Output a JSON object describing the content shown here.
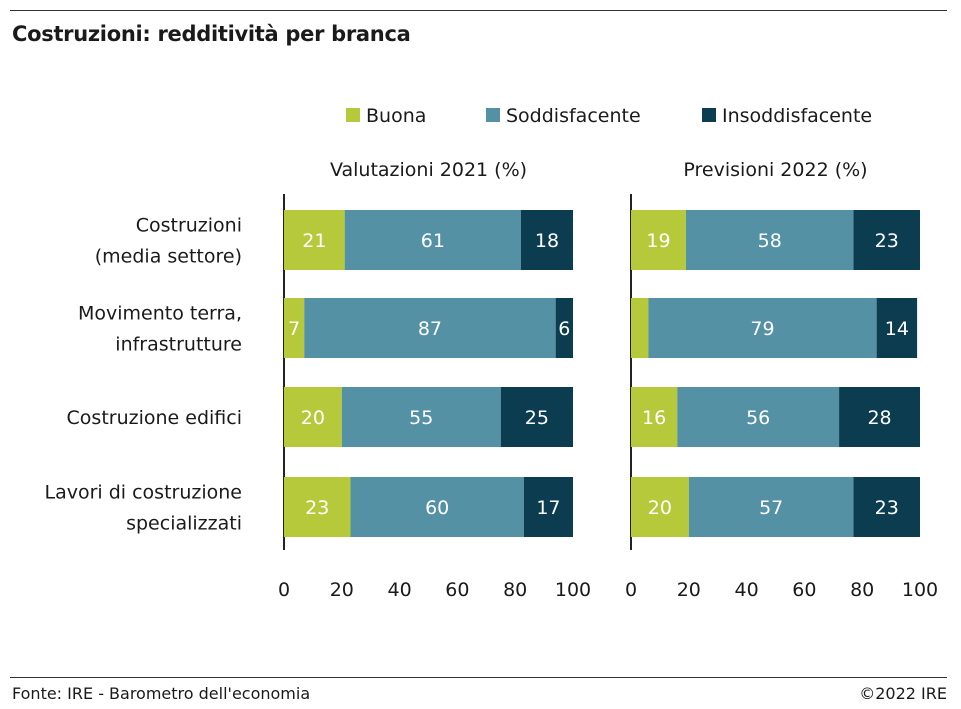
{
  "header": {
    "title": "Costruzioni: redditività per branca"
  },
  "footer": {
    "source": "Fonte: IRE - Barometro dell'economia",
    "copyright": "©2022 IRE"
  },
  "legend": [
    {
      "name": "Buona",
      "color": "#b5c93a"
    },
    {
      "name": "Soddisfacente",
      "color": "#5591a4"
    },
    {
      "name": "Insoddisfacente",
      "color": "#0b3c50"
    }
  ],
  "row_labels": [
    [
      "Costruzioni",
      "(media settore)"
    ],
    [
      "Movimento terra,",
      "infrastrutture"
    ],
    [
      "Costruzione edifici"
    ],
    [
      "Lavori di costruzione",
      "specializzati"
    ]
  ],
  "chart_data": [
    {
      "type": "bar",
      "orientation": "horizontal",
      "stacked": true,
      "title": "Valutazioni 2021 (%)",
      "categories": [
        "Costruzioni (media settore)",
        "Movimento terra, infrastrutture",
        "Costruzione edifici",
        "Lavori di costruzione specializzati"
      ],
      "series": [
        {
          "name": "Buona",
          "values": [
            21,
            7,
            20,
            23
          ]
        },
        {
          "name": "Soddisfacente",
          "values": [
            61,
            87,
            55,
            60
          ]
        },
        {
          "name": "Insoddisfacente",
          "values": [
            18,
            6,
            25,
            17
          ]
        }
      ],
      "xlim": [
        0,
        100
      ],
      "xticks": [
        0,
        20,
        40,
        60,
        80,
        100
      ],
      "show_labels": [
        [
          true,
          true,
          true,
          true
        ],
        [
          true,
          true,
          true,
          true
        ],
        [
          true,
          true,
          true,
          true
        ]
      ]
    },
    {
      "type": "bar",
      "orientation": "horizontal",
      "stacked": true,
      "title": "Previsioni 2022 (%)",
      "categories": [
        "Costruzioni (media settore)",
        "Movimento terra, infrastrutture",
        "Costruzione edifici",
        "Lavori di costruzione specializzati"
      ],
      "series": [
        {
          "name": "Buona",
          "values": [
            19,
            6,
            16,
            20
          ]
        },
        {
          "name": "Soddisfacente",
          "values": [
            58,
            79,
            56,
            57
          ]
        },
        {
          "name": "Insoddisfacente",
          "values": [
            23,
            14,
            28,
            23
          ]
        }
      ],
      "xlim": [
        0,
        100
      ],
      "xticks": [
        0,
        20,
        40,
        60,
        80,
        100
      ],
      "show_labels": [
        [
          true,
          false,
          true,
          true
        ],
        [
          true,
          true,
          true,
          true
        ],
        [
          true,
          true,
          true,
          true
        ]
      ]
    }
  ]
}
